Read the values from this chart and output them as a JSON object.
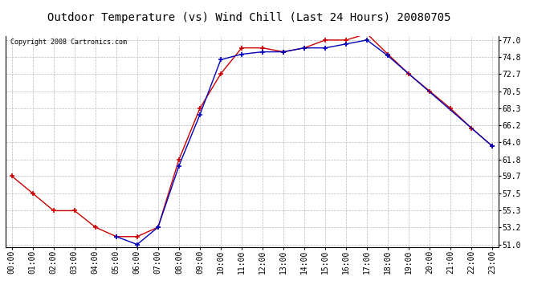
{
  "title": "Outdoor Temperature (vs) Wind Chill (Last 24 Hours) 20080705",
  "copyright": "Copyright 2008 Cartronics.com",
  "x_labels": [
    "00:00",
    "01:00",
    "02:00",
    "03:00",
    "04:00",
    "05:00",
    "06:00",
    "07:00",
    "08:00",
    "09:00",
    "10:00",
    "11:00",
    "12:00",
    "13:00",
    "14:00",
    "15:00",
    "16:00",
    "17:00",
    "18:00",
    "19:00",
    "20:00",
    "21:00",
    "22:00",
    "23:00"
  ],
  "temp_red": [
    59.7,
    57.5,
    55.3,
    55.3,
    53.2,
    52.0,
    52.0,
    53.2,
    61.8,
    68.3,
    72.7,
    76.0,
    76.0,
    75.5,
    76.0,
    77.0,
    77.0,
    77.8,
    75.2,
    72.7,
    70.5,
    68.3,
    65.8,
    63.5
  ],
  "wind_chill_blue": [
    null,
    null,
    null,
    null,
    null,
    52.0,
    51.0,
    53.2,
    61.0,
    67.5,
    74.5,
    75.2,
    75.5,
    75.5,
    76.0,
    76.0,
    76.5,
    77.0,
    75.0,
    null,
    null,
    null,
    null,
    63.5
  ],
  "ylim_min": 51.0,
  "ylim_max": 77.0,
  "yticks": [
    51.0,
    53.2,
    55.3,
    57.5,
    59.7,
    61.8,
    64.0,
    66.2,
    68.3,
    70.5,
    72.7,
    74.8,
    77.0
  ],
  "red_color": "#cc0000",
  "blue_color": "#0000bb",
  "bg_color": "#ffffff",
  "plot_bg_color": "#ffffff",
  "grid_color": "#bbbbbb",
  "title_fontsize": 10,
  "tick_fontsize": 7,
  "copyright_fontsize": 6
}
